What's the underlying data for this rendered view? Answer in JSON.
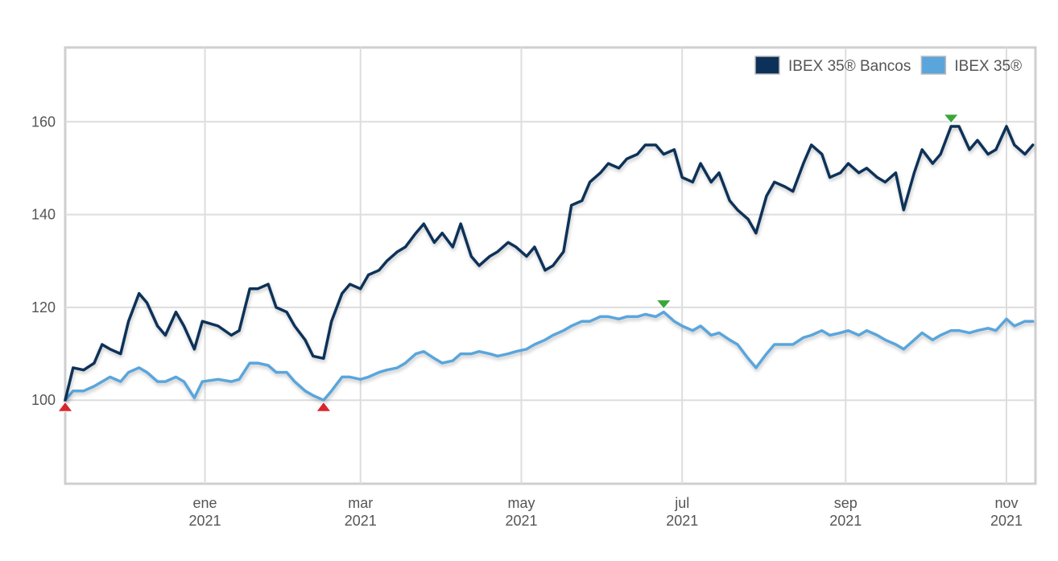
{
  "chart_data": {
    "type": "line",
    "title": "",
    "xlabel": "",
    "ylabel": "",
    "ylim": [
      82,
      176
    ],
    "yticks": [
      100,
      120,
      140,
      160
    ],
    "xlim": [
      "2020-11-09",
      "2021-11-12"
    ],
    "xticks": [
      {
        "date": "2021-01-01",
        "label1": "ene",
        "label2": "2021"
      },
      {
        "date": "2021-03-01",
        "label1": "mar",
        "label2": "2021"
      },
      {
        "date": "2021-05-01",
        "label1": "may",
        "label2": "2021"
      },
      {
        "date": "2021-07-01",
        "label1": "jul",
        "label2": "2021"
      },
      {
        "date": "2021-09-01",
        "label1": "sep",
        "label2": "2021"
      },
      {
        "date": "2021-11-01",
        "label1": "nov",
        "label2": "2021"
      }
    ],
    "grid": true,
    "legend_position": "top-right",
    "series": [
      {
        "name": "IBEX 35® Bancos",
        "color": "#0d3059",
        "points": [
          [
            "2020-11-09",
            100
          ],
          [
            "2020-11-12",
            107
          ],
          [
            "2020-11-16",
            106.5
          ],
          [
            "2020-11-20",
            108
          ],
          [
            "2020-11-23",
            112
          ],
          [
            "2020-11-26",
            111
          ],
          [
            "2020-11-30",
            110
          ],
          [
            "2020-12-03",
            117
          ],
          [
            "2020-12-07",
            123
          ],
          [
            "2020-12-10",
            121
          ],
          [
            "2020-12-14",
            116
          ],
          [
            "2020-12-17",
            114
          ],
          [
            "2020-12-21",
            119
          ],
          [
            "2020-12-24",
            116
          ],
          [
            "2020-12-28",
            111
          ],
          [
            "2020-12-31",
            117
          ],
          [
            "2021-01-06",
            116
          ],
          [
            "2021-01-11",
            114
          ],
          [
            "2021-01-14",
            115
          ],
          [
            "2021-01-18",
            124
          ],
          [
            "2021-01-21",
            124
          ],
          [
            "2021-01-25",
            125
          ],
          [
            "2021-01-28",
            120
          ],
          [
            "2021-02-01",
            119
          ],
          [
            "2021-02-04",
            116
          ],
          [
            "2021-02-08",
            113
          ],
          [
            "2021-02-11",
            109.5
          ],
          [
            "2021-02-15",
            109
          ],
          [
            "2021-02-18",
            117
          ],
          [
            "2021-02-22",
            123
          ],
          [
            "2021-02-25",
            125
          ],
          [
            "2021-03-01",
            124
          ],
          [
            "2021-03-04",
            127
          ],
          [
            "2021-03-08",
            128
          ],
          [
            "2021-03-11",
            130
          ],
          [
            "2021-03-15",
            132
          ],
          [
            "2021-03-18",
            133
          ],
          [
            "2021-03-22",
            136
          ],
          [
            "2021-03-25",
            138
          ],
          [
            "2021-03-29",
            134
          ],
          [
            "2021-04-01",
            136
          ],
          [
            "2021-04-05",
            133
          ],
          [
            "2021-04-08",
            138
          ],
          [
            "2021-04-12",
            131
          ],
          [
            "2021-04-15",
            129
          ],
          [
            "2021-04-19",
            131
          ],
          [
            "2021-04-22",
            132
          ],
          [
            "2021-04-26",
            134
          ],
          [
            "2021-04-29",
            133
          ],
          [
            "2021-05-03",
            131
          ],
          [
            "2021-05-06",
            133
          ],
          [
            "2021-05-10",
            128
          ],
          [
            "2021-05-13",
            129
          ],
          [
            "2021-05-17",
            132
          ],
          [
            "2021-05-20",
            142
          ],
          [
            "2021-05-24",
            143
          ],
          [
            "2021-05-27",
            147
          ],
          [
            "2021-05-31",
            149
          ],
          [
            "2021-06-03",
            151
          ],
          [
            "2021-06-07",
            150
          ],
          [
            "2021-06-10",
            152
          ],
          [
            "2021-06-14",
            153
          ],
          [
            "2021-06-17",
            155
          ],
          [
            "2021-06-21",
            155
          ],
          [
            "2021-06-24",
            153
          ],
          [
            "2021-06-28",
            154
          ],
          [
            "2021-07-01",
            148
          ],
          [
            "2021-07-05",
            147
          ],
          [
            "2021-07-08",
            151
          ],
          [
            "2021-07-12",
            147
          ],
          [
            "2021-07-15",
            149
          ],
          [
            "2021-07-19",
            143
          ],
          [
            "2021-07-22",
            141
          ],
          [
            "2021-07-26",
            139
          ],
          [
            "2021-07-29",
            136
          ],
          [
            "2021-08-02",
            144
          ],
          [
            "2021-08-05",
            147
          ],
          [
            "2021-08-09",
            146
          ],
          [
            "2021-08-12",
            145
          ],
          [
            "2021-08-16",
            151
          ],
          [
            "2021-08-19",
            155
          ],
          [
            "2021-08-23",
            153
          ],
          [
            "2021-08-26",
            148
          ],
          [
            "2021-08-30",
            149
          ],
          [
            "2021-09-02",
            151
          ],
          [
            "2021-09-06",
            149
          ],
          [
            "2021-09-09",
            150
          ],
          [
            "2021-09-13",
            148
          ],
          [
            "2021-09-16",
            147
          ],
          [
            "2021-09-20",
            149
          ],
          [
            "2021-09-23",
            141
          ],
          [
            "2021-09-27",
            149
          ],
          [
            "2021-09-30",
            154
          ],
          [
            "2021-10-04",
            151
          ],
          [
            "2021-10-07",
            153
          ],
          [
            "2021-10-11",
            159
          ],
          [
            "2021-10-14",
            159
          ],
          [
            "2021-10-18",
            154
          ],
          [
            "2021-10-21",
            156
          ],
          [
            "2021-10-25",
            153
          ],
          [
            "2021-10-28",
            154
          ],
          [
            "2021-11-01",
            159
          ],
          [
            "2021-11-04",
            155
          ],
          [
            "2021-11-08",
            153
          ],
          [
            "2021-11-11",
            155
          ]
        ]
      },
      {
        "name": "IBEX 35®",
        "color": "#5aa5dc",
        "points": [
          [
            "2020-11-09",
            100
          ],
          [
            "2020-11-12",
            102
          ],
          [
            "2020-11-16",
            102
          ],
          [
            "2020-11-20",
            103
          ],
          [
            "2020-11-23",
            104
          ],
          [
            "2020-11-26",
            105
          ],
          [
            "2020-11-30",
            104
          ],
          [
            "2020-12-03",
            106
          ],
          [
            "2020-12-07",
            107
          ],
          [
            "2020-12-10",
            106
          ],
          [
            "2020-12-14",
            104
          ],
          [
            "2020-12-17",
            104
          ],
          [
            "2020-12-21",
            105
          ],
          [
            "2020-12-24",
            104
          ],
          [
            "2020-12-28",
            100.5
          ],
          [
            "2020-12-31",
            104
          ],
          [
            "2021-01-06",
            104.5
          ],
          [
            "2021-01-11",
            104
          ],
          [
            "2021-01-14",
            104.5
          ],
          [
            "2021-01-18",
            108
          ],
          [
            "2021-01-21",
            108
          ],
          [
            "2021-01-25",
            107.5
          ],
          [
            "2021-01-28",
            106
          ],
          [
            "2021-02-01",
            106
          ],
          [
            "2021-02-04",
            104
          ],
          [
            "2021-02-08",
            102
          ],
          [
            "2021-02-11",
            101
          ],
          [
            "2021-02-15",
            100
          ],
          [
            "2021-02-18",
            102
          ],
          [
            "2021-02-22",
            105
          ],
          [
            "2021-02-25",
            105
          ],
          [
            "2021-03-01",
            104.5
          ],
          [
            "2021-03-04",
            105
          ],
          [
            "2021-03-08",
            106
          ],
          [
            "2021-03-11",
            106.5
          ],
          [
            "2021-03-15",
            107
          ],
          [
            "2021-03-18",
            108
          ],
          [
            "2021-03-22",
            110
          ],
          [
            "2021-03-25",
            110.5
          ],
          [
            "2021-03-29",
            109
          ],
          [
            "2021-04-01",
            108
          ],
          [
            "2021-04-05",
            108.5
          ],
          [
            "2021-04-08",
            110
          ],
          [
            "2021-04-12",
            110
          ],
          [
            "2021-04-15",
            110.5
          ],
          [
            "2021-04-19",
            110
          ],
          [
            "2021-04-22",
            109.5
          ],
          [
            "2021-04-26",
            110
          ],
          [
            "2021-04-29",
            110.5
          ],
          [
            "2021-05-03",
            111
          ],
          [
            "2021-05-06",
            112
          ],
          [
            "2021-05-10",
            113
          ],
          [
            "2021-05-13",
            114
          ],
          [
            "2021-05-17",
            115
          ],
          [
            "2021-05-20",
            116
          ],
          [
            "2021-05-24",
            117
          ],
          [
            "2021-05-27",
            117
          ],
          [
            "2021-05-31",
            118
          ],
          [
            "2021-06-03",
            118
          ],
          [
            "2021-06-07",
            117.5
          ],
          [
            "2021-06-10",
            118
          ],
          [
            "2021-06-14",
            118
          ],
          [
            "2021-06-17",
            118.5
          ],
          [
            "2021-06-21",
            118
          ],
          [
            "2021-06-24",
            119
          ],
          [
            "2021-06-28",
            117
          ],
          [
            "2021-07-01",
            116
          ],
          [
            "2021-07-05",
            115
          ],
          [
            "2021-07-08",
            116
          ],
          [
            "2021-07-12",
            114
          ],
          [
            "2021-07-15",
            114.5
          ],
          [
            "2021-07-19",
            113
          ],
          [
            "2021-07-22",
            112
          ],
          [
            "2021-07-26",
            109
          ],
          [
            "2021-07-29",
            107
          ],
          [
            "2021-08-02",
            110
          ],
          [
            "2021-08-05",
            112
          ],
          [
            "2021-08-09",
            112
          ],
          [
            "2021-08-12",
            112
          ],
          [
            "2021-08-16",
            113.5
          ],
          [
            "2021-08-19",
            114
          ],
          [
            "2021-08-23",
            115
          ],
          [
            "2021-08-26",
            114
          ],
          [
            "2021-08-30",
            114.5
          ],
          [
            "2021-09-02",
            115
          ],
          [
            "2021-09-06",
            114
          ],
          [
            "2021-09-09",
            115
          ],
          [
            "2021-09-13",
            114
          ],
          [
            "2021-09-16",
            113
          ],
          [
            "2021-09-20",
            112
          ],
          [
            "2021-09-23",
            111
          ],
          [
            "2021-09-27",
            113
          ],
          [
            "2021-09-30",
            114.5
          ],
          [
            "2021-10-04",
            113
          ],
          [
            "2021-10-07",
            114
          ],
          [
            "2021-10-11",
            115
          ],
          [
            "2021-10-14",
            115
          ],
          [
            "2021-10-18",
            114.5
          ],
          [
            "2021-10-21",
            115
          ],
          [
            "2021-10-25",
            115.5
          ],
          [
            "2021-10-28",
            115
          ],
          [
            "2021-11-01",
            117.5
          ],
          [
            "2021-11-04",
            116
          ],
          [
            "2021-11-08",
            117
          ],
          [
            "2021-11-11",
            117
          ]
        ]
      }
    ],
    "markers": [
      {
        "series": "IBEX 35® Bancos",
        "date": "2020-11-09",
        "value": 100,
        "kind": "min",
        "color": "#d9262e"
      },
      {
        "series": "IBEX 35®",
        "date": "2021-02-15",
        "value": 100,
        "kind": "min",
        "color": "#d9262e"
      },
      {
        "series": "IBEX 35®",
        "date": "2021-06-24",
        "value": 119,
        "kind": "max",
        "color": "#3aa63a"
      },
      {
        "series": "IBEX 35® Bancos",
        "date": "2021-10-11",
        "value": 159,
        "kind": "max",
        "color": "#3aa63a"
      }
    ]
  }
}
